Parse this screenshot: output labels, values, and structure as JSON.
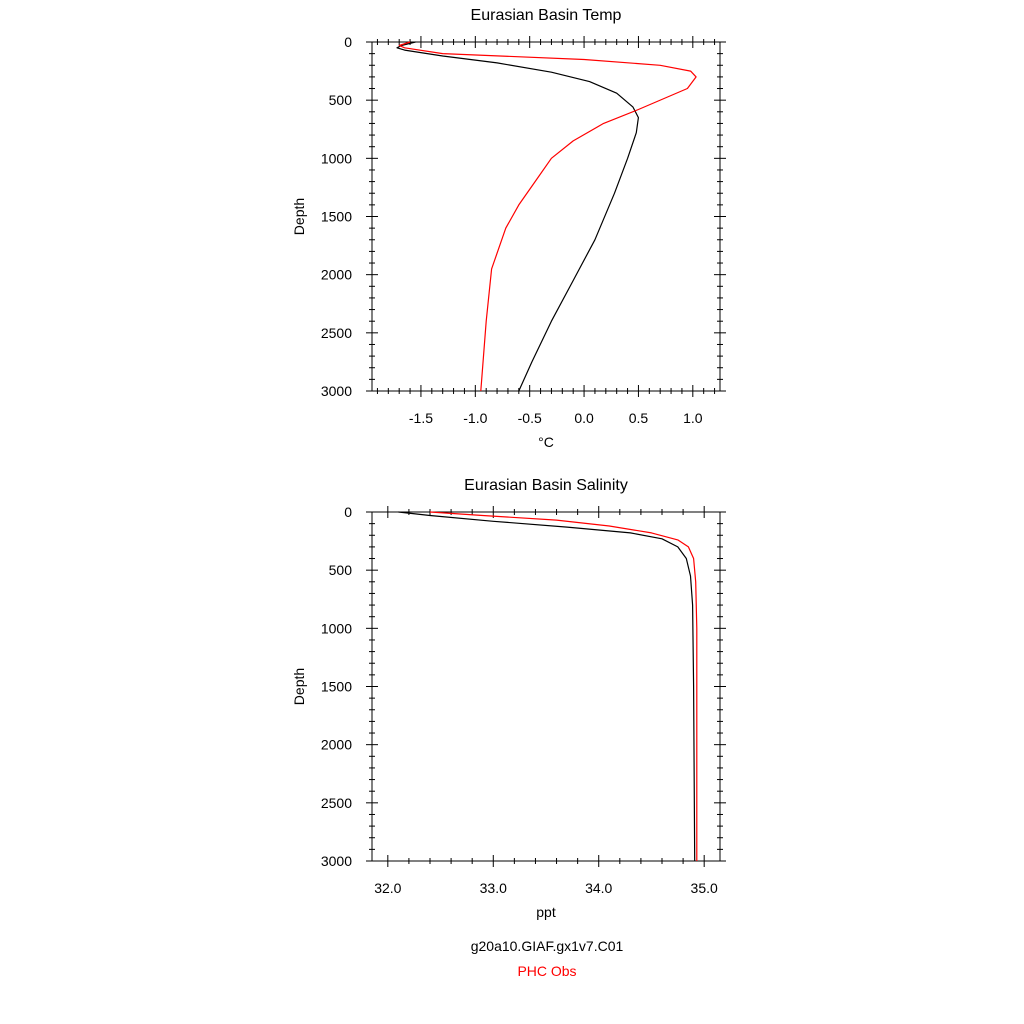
{
  "chart_data": [
    {
      "type": "line",
      "title": "Eurasian Basin Temp",
      "xlabel": "°C",
      "ylabel": "Depth",
      "xlim": [
        -1.95,
        1.25
      ],
      "ylim": [
        0,
        3000
      ],
      "y_inverted": true,
      "xticks": [
        -1.5,
        -1.0,
        -0.5,
        0.0,
        0.5,
        1.0
      ],
      "xtick_labels": [
        "-1.5",
        "-1.0",
        "-0.5",
        "0.0",
        "0.5",
        "1.0"
      ],
      "yticks": [
        0,
        500,
        1000,
        1500,
        2000,
        2500,
        3000
      ],
      "ytick_labels": [
        "0",
        "500",
        "1000",
        "1500",
        "2000",
        "2500",
        "3000"
      ],
      "series": [
        {
          "name": "g20a10.GIAF.gx1v7.C01",
          "color": "#000000",
          "points": [
            [
              -1.55,
              0
            ],
            [
              -1.68,
              30
            ],
            [
              -1.72,
              50
            ],
            [
              -1.65,
              70
            ],
            [
              -1.3,
              120
            ],
            [
              -0.8,
              180
            ],
            [
              -0.3,
              260
            ],
            [
              0.05,
              340
            ],
            [
              0.3,
              440
            ],
            [
              0.45,
              560
            ],
            [
              0.5,
              650
            ],
            [
              0.48,
              780
            ],
            [
              0.4,
              1000
            ],
            [
              0.28,
              1300
            ],
            [
              0.1,
              1700
            ],
            [
              -0.1,
              2050
            ],
            [
              -0.3,
              2400
            ],
            [
              -0.48,
              2750
            ],
            [
              -0.6,
              3000
            ]
          ]
        },
        {
          "name": "PHC Obs",
          "color": "#ff0000",
          "points": [
            [
              -1.6,
              0
            ],
            [
              -1.7,
              30
            ],
            [
              -1.65,
              50
            ],
            [
              -1.3,
              100
            ],
            [
              0.0,
              150
            ],
            [
              0.7,
              200
            ],
            [
              0.98,
              250
            ],
            [
              1.03,
              300
            ],
            [
              0.95,
              400
            ],
            [
              0.5,
              580
            ],
            [
              0.18,
              700
            ],
            [
              -0.1,
              850
            ],
            [
              -0.3,
              1000
            ],
            [
              -0.45,
              1200
            ],
            [
              -0.6,
              1400
            ],
            [
              -0.72,
              1600
            ],
            [
              -0.85,
              1950
            ],
            [
              -0.9,
              2400
            ],
            [
              -0.95,
              3000
            ]
          ]
        }
      ]
    },
    {
      "type": "line",
      "title": "Eurasian Basin Salinity",
      "xlabel": "ppt",
      "ylabel": "Depth",
      "xlim": [
        31.85,
        35.15
      ],
      "ylim": [
        0,
        3000
      ],
      "y_inverted": true,
      "xticks": [
        32.0,
        33.0,
        34.0,
        35.0
      ],
      "xtick_labels": [
        "32.0",
        "33.0",
        "34.0",
        "35.0"
      ],
      "yticks": [
        0,
        500,
        1000,
        1500,
        2000,
        2500,
        3000
      ],
      "ytick_labels": [
        "0",
        "500",
        "1000",
        "1500",
        "2000",
        "2500",
        "3000"
      ],
      "series": [
        {
          "name": "g20a10.GIAF.gx1v7.C01",
          "color": "#000000",
          "points": [
            [
              32.1,
              0
            ],
            [
              32.4,
              30
            ],
            [
              33.0,
              80
            ],
            [
              33.7,
              130
            ],
            [
              34.3,
              180
            ],
            [
              34.6,
              230
            ],
            [
              34.75,
              300
            ],
            [
              34.83,
              400
            ],
            [
              34.87,
              550
            ],
            [
              34.89,
              800
            ],
            [
              34.9,
              1500
            ],
            [
              34.91,
              3000
            ]
          ]
        },
        {
          "name": "PHC Obs",
          "color": "#ff0000",
          "points": [
            [
              32.4,
              0
            ],
            [
              32.9,
              30
            ],
            [
              33.6,
              70
            ],
            [
              34.1,
              120
            ],
            [
              34.5,
              180
            ],
            [
              34.75,
              240
            ],
            [
              34.85,
              300
            ],
            [
              34.9,
              400
            ],
            [
              34.92,
              600
            ],
            [
              34.93,
              1000
            ],
            [
              34.93,
              2000
            ],
            [
              34.93,
              3000
            ]
          ]
        }
      ]
    }
  ],
  "legend": [
    {
      "label": "g20a10.GIAF.gx1v7.C01",
      "color": "#000000"
    },
    {
      "label": "PHC Obs",
      "color": "#ff0000"
    }
  ]
}
